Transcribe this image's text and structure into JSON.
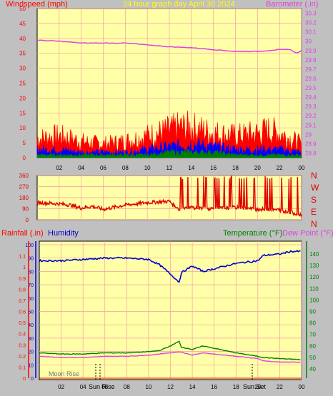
{
  "header": {
    "left_label": "Windspeed (mph)",
    "title": "24 hour graph day  April 30 2024",
    "right_label": "Barometer (.in)"
  },
  "middle": {
    "right_labels": [
      "N",
      "W",
      "S",
      "E",
      "N"
    ]
  },
  "bottom_header": {
    "rain_label": "Rainfall (.in)",
    "humidity_label": "Humidity",
    "temp_label": "Temperature (°F)",
    "dew_label": "Dew Point (°F)"
  },
  "sun_labels": {
    "moon_rise": "Moon Rise",
    "sun_rise": "Sun Rise",
    "sun_set": "Sun Set"
  },
  "colors": {
    "plot_bg": "#ffffa8",
    "grid": "#f2a0a0",
    "wind_gust": "#ff0000",
    "wind_avg": "#0000ff",
    "wind_low": "#008000",
    "barometer": "#e040e0",
    "direction": "#e00000",
    "humidity": "#0000cc",
    "temperature": "#008000",
    "dew_point": "#e040e0",
    "rain_axis": "#ff0000",
    "humidity_axis": "#0000cc",
    "temp_axis": "#008000"
  },
  "chart_data": [
    {
      "type": "area",
      "x_ticks": [
        "02",
        "04",
        "06",
        "08",
        "10",
        "12",
        "14",
        "16",
        "18",
        "20",
        "22",
        "00"
      ],
      "left_axis": {
        "label": "Windspeed (mph)",
        "ticks": [
          0,
          5,
          10,
          15,
          20,
          25,
          30,
          35,
          40,
          45,
          50
        ],
        "ylim": [
          0,
          50
        ]
      },
      "right_axis": {
        "label": "Barometer (.in)",
        "ticks": [
          "28.8",
          "28.9",
          "29",
          "29.1",
          "29.2",
          "29.3",
          "29.4",
          "29.5",
          "29.6",
          "29.7",
          "29.8",
          "29.9",
          "30",
          "30.1",
          "30.2",
          "30.3"
        ],
        "ylim": [
          28.75,
          30.35
        ]
      },
      "series": [
        {
          "name": "Barometer",
          "axis": "right",
          "x": [
            0,
            2,
            4,
            6,
            8,
            10,
            12,
            14,
            16,
            18,
            20,
            22,
            23,
            23.5,
            24
          ],
          "values": [
            30.01,
            30.0,
            29.98,
            29.98,
            29.98,
            29.96,
            29.94,
            29.93,
            29.91,
            29.89,
            29.89,
            29.91,
            29.91,
            29.87,
            29.9
          ]
        },
        {
          "name": "Gust",
          "axis": "left",
          "x": [
            0,
            2,
            4,
            6,
            8,
            10,
            12,
            13,
            14,
            16,
            18,
            20,
            21,
            22,
            23,
            24
          ],
          "values": [
            7,
            8,
            6,
            5,
            6,
            8,
            10,
            11,
            11,
            9,
            8,
            9,
            10,
            9,
            7,
            5
          ]
        },
        {
          "name": "Average",
          "axis": "left",
          "x": [
            0,
            2,
            4,
            6,
            8,
            10,
            12,
            14,
            16,
            18,
            20,
            22,
            24
          ],
          "values": [
            3,
            3,
            2,
            2,
            2,
            3,
            4,
            5,
            4,
            3,
            3,
            3,
            2
          ]
        },
        {
          "name": "Low",
          "axis": "left",
          "x": [
            0,
            2,
            4,
            6,
            8,
            10,
            12,
            14,
            16,
            18,
            20,
            22,
            24
          ],
          "values": [
            1,
            1,
            1,
            1,
            1,
            1,
            2,
            2,
            2,
            1,
            1,
            1,
            1
          ]
        }
      ]
    },
    {
      "type": "line",
      "x_ticks": [],
      "left_axis": {
        "ticks": [
          0,
          90,
          180,
          270,
          360
        ],
        "ylim": [
          0,
          360
        ]
      },
      "series": [
        {
          "name": "Wind Direction",
          "x": [
            0,
            2,
            3,
            4,
            5,
            6,
            8,
            10,
            12,
            13,
            14,
            16,
            18,
            20,
            22,
            24
          ],
          "values": [
            140,
            130,
            120,
            95,
            110,
            85,
            120,
            140,
            150,
            80,
            100,
            90,
            100,
            85,
            80,
            40
          ]
        }
      ]
    },
    {
      "type": "line",
      "x_ticks": [
        "02",
        "04",
        "06",
        "08",
        "10",
        "12",
        "14",
        "16",
        "18",
        "20",
        "22",
        "00"
      ],
      "left_axis": {
        "label": "Rainfall (.in)",
        "ticks": [
          "0",
          "0.1",
          "0.2",
          "0.3",
          "0.4",
          "0.5",
          "0.6",
          "0.7",
          "0.8",
          "0.9",
          "1",
          "1.1"
        ],
        "ylim": [
          0,
          1.2
        ]
      },
      "humidity_axis": {
        "label": "Humidity",
        "ticks": [
          0,
          10,
          20,
          30,
          40,
          50,
          60,
          70,
          80,
          90,
          100
        ],
        "ylim": [
          0,
          100
        ]
      },
      "right_axis": {
        "label": "Temperature (°F)",
        "ticks": [
          40,
          50,
          60,
          70,
          80,
          90,
          100,
          110,
          120,
          130,
          140
        ],
        "ylim": [
          32,
          148
        ]
      },
      "series": [
        {
          "name": "Humidity",
          "axis": "humidity",
          "x": [
            0,
            2,
            4,
            6,
            8,
            10,
            11,
            12,
            12.8,
            13,
            14,
            15,
            16,
            18,
            20,
            20.5,
            22,
            23,
            24
          ],
          "values": [
            88,
            88,
            89,
            90,
            90,
            89,
            85,
            78,
            72,
            79,
            84,
            80,
            82,
            86,
            88,
            92,
            93,
            95,
            95
          ]
        },
        {
          "name": "Temperature",
          "axis": "temp",
          "x": [
            0,
            2,
            4,
            6,
            8,
            10,
            11,
            12,
            12.8,
            13,
            14,
            15,
            16,
            18,
            20,
            20.5,
            22,
            24
          ],
          "values": [
            54,
            53,
            53,
            54,
            54,
            55,
            56,
            60,
            64,
            59,
            57,
            60,
            58,
            54,
            51,
            50,
            49,
            48
          ]
        },
        {
          "name": "Dew Point",
          "axis": "temp",
          "x": [
            0,
            2,
            4,
            6,
            8,
            10,
            12,
            12.8,
            14,
            15,
            16,
            18,
            20,
            20.5,
            22,
            24
          ],
          "values": [
            51,
            50,
            50,
            51,
            51,
            52,
            54,
            55,
            52,
            54,
            53,
            51,
            49,
            47,
            46,
            46
          ]
        },
        {
          "name": "Rainfall",
          "axis": "rain",
          "x": [
            0,
            24
          ],
          "values": [
            0,
            0
          ]
        }
      ]
    }
  ]
}
